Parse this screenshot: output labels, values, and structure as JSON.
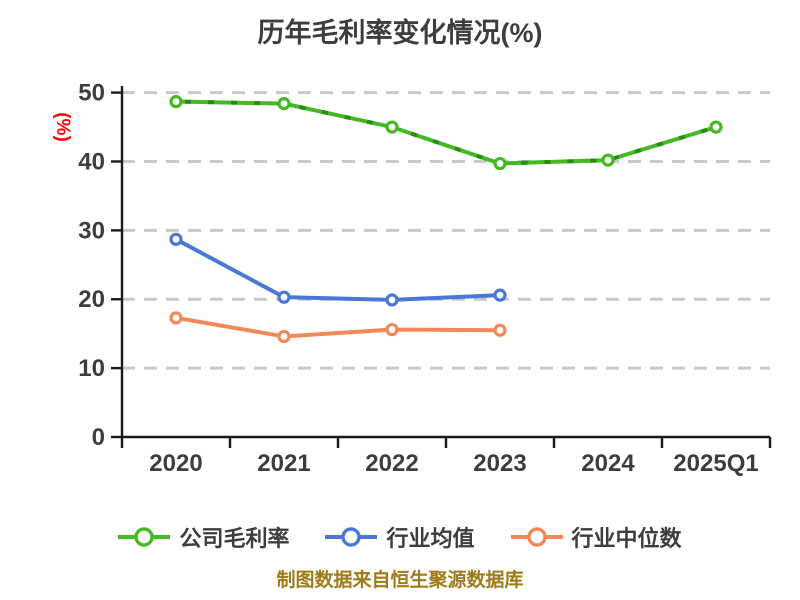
{
  "chart_data": {
    "type": "line",
    "title": "历年毛利率变化情况(%)",
    "ylabel": "(%)",
    "source_note": "制图数据来自恒生聚源数据库",
    "categories": [
      "2020",
      "2021",
      "2022",
      "2023",
      "2024",
      "2025Q1"
    ],
    "series": [
      {
        "key": "company-gross-margin",
        "name": "公司毛利率",
        "color": "#43b923",
        "dash_overlay_color": "#2b8a10",
        "line_style": "dash-dot",
        "values": [
          48.7,
          48.4,
          45.0,
          39.7,
          40.2,
          45.0
        ]
      },
      {
        "key": "industry-mean",
        "name": "行业均值",
        "color": "#4a77d6",
        "line_style": "solid",
        "values": [
          28.7,
          20.3,
          19.9,
          20.6,
          null,
          null
        ]
      },
      {
        "key": "industry-median",
        "name": "行业中位数",
        "color": "#f2875a",
        "line_style": "solid",
        "values": [
          17.3,
          14.6,
          15.6,
          15.5,
          null,
          null
        ]
      }
    ],
    "ylim": [
      0,
      50
    ],
    "yticks": [
      0,
      10,
      20,
      30,
      40,
      50
    ],
    "grid": "horizontal dashed",
    "legend_position": "bottom",
    "colors": {
      "axis": "#1a1a1a",
      "tick_label": "#3d3d3d",
      "grid": "#c9c9c9",
      "title": "#3d3d3d",
      "ylabel": "#ff0000",
      "footer": "#9e7b17",
      "legend_text": "#3d3d3d",
      "marker_fill": "#ffffff"
    }
  }
}
